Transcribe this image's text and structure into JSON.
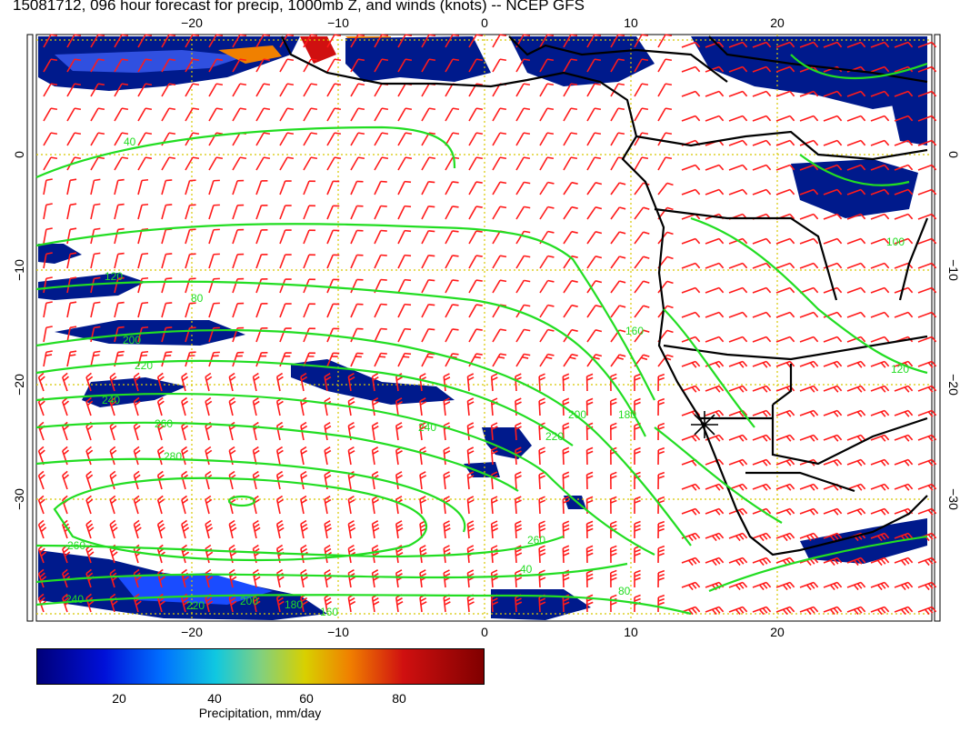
{
  "title": "15081712, 096 hour forecast for precip, 1000mb Z, and winds (knots) -- NCEP GFS",
  "axes": {
    "x_ticks": [
      "−20",
      "−10",
      "0",
      "10",
      "20"
    ],
    "y_ticks": [
      "0",
      "−10",
      "−20",
      "−30"
    ]
  },
  "contour_labels": [
    "40",
    "80",
    "120",
    "160",
    "200",
    "220",
    "240",
    "260",
    "280",
    "260",
    "240",
    "220",
    "200",
    "180",
    "160",
    "180",
    "200",
    "220",
    "240",
    "260",
    "40",
    "80",
    "100",
    "120"
  ],
  "colorbar": {
    "ticks": [
      "20",
      "40",
      "60",
      "80"
    ],
    "label": "Precipitation, mm/day"
  },
  "colors": {
    "precip_dark": "#001a8c",
    "precip_mid": "#1a4cff",
    "contour": "#22dd22",
    "wind_barb": "#ff1a1a",
    "coast": "#000000",
    "grid": "#d8c800"
  },
  "marker": "asterisk-marker"
}
